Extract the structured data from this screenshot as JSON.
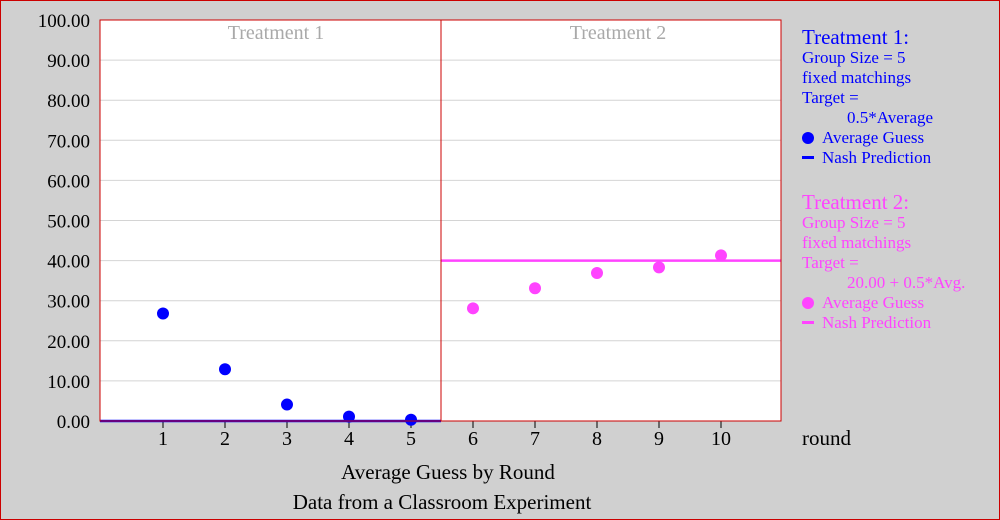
{
  "chart_data": {
    "type": "scatter",
    "ylim": [
      0,
      100
    ],
    "yticks": [
      "0.00",
      "10.00",
      "20.00",
      "30.00",
      "40.00",
      "50.00",
      "60.00",
      "70.00",
      "80.00",
      "90.00",
      "100.00"
    ],
    "xlabel": "round",
    "footer_line1": "Average Guess by Round",
    "footer_line2": "Data from a Classroom Experiment",
    "grid": true,
    "panels": [
      {
        "title": "Treatment 1",
        "color": "#0000ff",
        "rounds": [
          1,
          2,
          3,
          4,
          5
        ],
        "average_guess": [
          26.8,
          12.9,
          4.1,
          1.1,
          0.3
        ],
        "nash_prediction": 0
      },
      {
        "title": "Treatment 2",
        "color": "#ff44ff",
        "rounds": [
          6,
          7,
          8,
          9,
          10
        ],
        "average_guess": [
          28.1,
          33.1,
          36.9,
          38.3,
          41.3
        ],
        "nash_prediction": 40
      }
    ]
  },
  "legend": {
    "treatment1": {
      "title": "Treatment 1:",
      "group_size": "Group Size = 5",
      "matching": "fixed matchings",
      "target_label": "Target =",
      "target_formula": "0.5*Average",
      "avg_guess": "Average Guess",
      "nash": "Nash Prediction"
    },
    "treatment2": {
      "title": "Treatment 2:",
      "group_size": "Group Size = 5",
      "matching": "fixed matchings",
      "target_label": "Target =",
      "target_formula": "20.00 + 0.5*Avg.",
      "avg_guess": "Average Guess",
      "nash": "Nash Prediction"
    }
  }
}
